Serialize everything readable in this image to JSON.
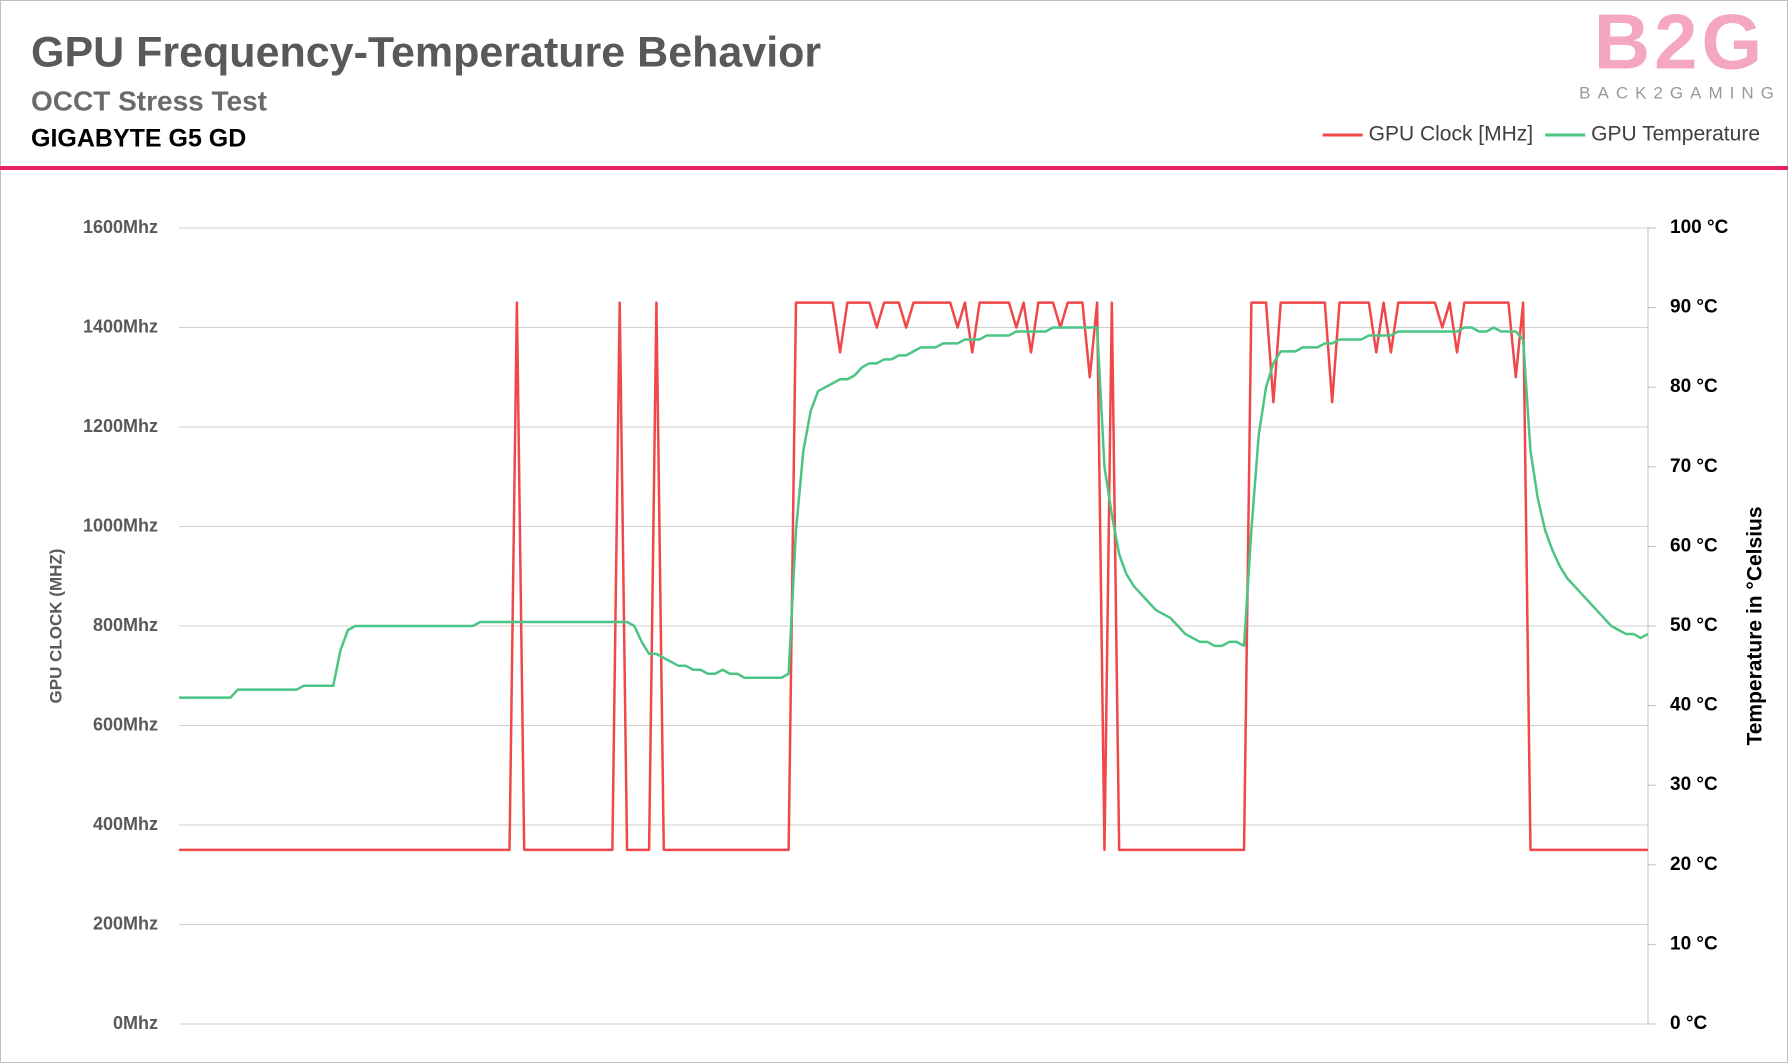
{
  "logo": {
    "mark": "B2G",
    "text": "BACK2GAMING"
  },
  "chart_data": {
    "type": "line",
    "title": "GPU Frequency-Temperature Behavior",
    "subtitle": "OCCT Stress Test",
    "device": "GIGABYTE G5 GD",
    "y_label": "GPU CLOCK (MHZ)",
    "y2_label": "Temperature in °Celsius",
    "ylim": [
      0,
      1600
    ],
    "yticks": [
      {
        "value": 0,
        "label": "0Mhz"
      },
      {
        "value": 200,
        "label": "200Mhz"
      },
      {
        "value": 400,
        "label": "400Mhz"
      },
      {
        "value": 600,
        "label": "600Mhz"
      },
      {
        "value": 800,
        "label": "800Mhz"
      },
      {
        "value": 1000,
        "label": "1000Mhz"
      },
      {
        "value": 1200,
        "label": "1200Mhz"
      },
      {
        "value": 1400,
        "label": "1400Mhz"
      },
      {
        "value": 1600,
        "label": "1600Mhz"
      }
    ],
    "y2lim": [
      0,
      100
    ],
    "y2ticks": [
      {
        "value": 0,
        "label": "0 °C"
      },
      {
        "value": 10,
        "label": "10 °C"
      },
      {
        "value": 20,
        "label": "20 °C"
      },
      {
        "value": 30,
        "label": "30 °C"
      },
      {
        "value": 40,
        "label": "40 °C"
      },
      {
        "value": 50,
        "label": "50 °C"
      },
      {
        "value": 60,
        "label": "60 °C"
      },
      {
        "value": 70,
        "label": "70 °C"
      },
      {
        "value": 80,
        "label": "80 °C"
      },
      {
        "value": 90,
        "label": "90 °C"
      },
      {
        "value": 100,
        "label": "100 °C"
      }
    ],
    "grid": true,
    "legend": "top-right",
    "series": [
      {
        "name": "GPU Clock [MHz]",
        "color": "#f04848",
        "values": [
          350,
          350,
          350,
          350,
          350,
          350,
          350,
          350,
          350,
          350,
          350,
          350,
          350,
          350,
          350,
          350,
          350,
          350,
          350,
          350,
          350,
          350,
          350,
          350,
          350,
          350,
          350,
          350,
          350,
          350,
          350,
          350,
          350,
          350,
          350,
          350,
          350,
          350,
          350,
          350,
          350,
          350,
          350,
          350,
          350,
          350,
          1450,
          350,
          350,
          350,
          350,
          350,
          350,
          350,
          350,
          350,
          350,
          350,
          350,
          350,
          1450,
          350,
          350,
          350,
          350,
          1450,
          350,
          350,
          350,
          350,
          350,
          350,
          350,
          350,
          350,
          350,
          350,
          350,
          350,
          350,
          350,
          350,
          350,
          350,
          1450,
          1450,
          1450,
          1450,
          1450,
          1450,
          1350,
          1450,
          1450,
          1450,
          1450,
          1400,
          1450,
          1450,
          1450,
          1400,
          1450,
          1450,
          1450,
          1450,
          1450,
          1450,
          1400,
          1450,
          1350,
          1450,
          1450,
          1450,
          1450,
          1450,
          1400,
          1450,
          1350,
          1450,
          1450,
          1450,
          1400,
          1450,
          1450,
          1450,
          1300,
          1450,
          350,
          1450,
          350,
          350,
          350,
          350,
          350,
          350,
          350,
          350,
          350,
          350,
          350,
          350,
          350,
          350,
          350,
          350,
          350,
          350,
          1450,
          1450,
          1450,
          1250,
          1450,
          1450,
          1450,
          1450,
          1450,
          1450,
          1450,
          1250,
          1450,
          1450,
          1450,
          1450,
          1450,
          1350,
          1450,
          1350,
          1450,
          1450,
          1450,
          1450,
          1450,
          1450,
          1400,
          1450,
          1350,
          1450,
          1450,
          1450,
          1450,
          1450,
          1450,
          1450,
          1300,
          1450,
          350,
          350,
          350,
          350,
          350,
          350,
          350,
          350,
          350,
          350,
          350,
          350,
          350,
          350,
          350,
          350,
          350
        ]
      },
      {
        "name": "GPU Temperature",
        "color": "#4cc484",
        "axis": "y2",
        "values": [
          41,
          41,
          41,
          41,
          41,
          41,
          41,
          41,
          42,
          42,
          42,
          42,
          42,
          42,
          42,
          42,
          42,
          42.5,
          42.5,
          42.5,
          42.5,
          42.5,
          47,
          49.5,
          50,
          50,
          50,
          50,
          50,
          50,
          50,
          50,
          50,
          50,
          50,
          50,
          50,
          50,
          50,
          50,
          50,
          50.5,
          50.5,
          50.5,
          50.5,
          50.5,
          50.5,
          50.5,
          50.5,
          50.5,
          50.5,
          50.5,
          50.5,
          50.5,
          50.5,
          50.5,
          50.5,
          50.5,
          50.5,
          50.5,
          50.5,
          50.5,
          50,
          48,
          46.5,
          46.5,
          46,
          45.5,
          45,
          45,
          44.5,
          44.5,
          44,
          44,
          44.5,
          44,
          44,
          43.5,
          43.5,
          43.5,
          43.5,
          43.5,
          43.5,
          44,
          62,
          72,
          77,
          79.5,
          80,
          80.5,
          81,
          81,
          81.5,
          82.5,
          83,
          83,
          83.5,
          83.5,
          84,
          84,
          84.5,
          85,
          85,
          85,
          85.5,
          85.5,
          85.5,
          86,
          86,
          86,
          86.5,
          86.5,
          86.5,
          86.5,
          87,
          87,
          87,
          87,
          87,
          87.5,
          87.5,
          87.5,
          87.5,
          87.5,
          87.5,
          87.5,
          70,
          64,
          59,
          56.5,
          55,
          54,
          53,
          52,
          51.5,
          51,
          50,
          49,
          48.5,
          48,
          48,
          47.5,
          47.5,
          48,
          48,
          47.5,
          62,
          74,
          80,
          83,
          84.5,
          84.5,
          84.5,
          85,
          85,
          85,
          85.5,
          85.5,
          86,
          86,
          86,
          86,
          86.5,
          86.5,
          86.5,
          86.5,
          87,
          87,
          87,
          87,
          87,
          87,
          87,
          87,
          87,
          87.5,
          87.5,
          87,
          87,
          87.5,
          87,
          87,
          87,
          86,
          72,
          66,
          62,
          59.5,
          57.5,
          56,
          55,
          54,
          53,
          52,
          51,
          50,
          49.5,
          49,
          49,
          48.5,
          49
        ]
      }
    ]
  }
}
